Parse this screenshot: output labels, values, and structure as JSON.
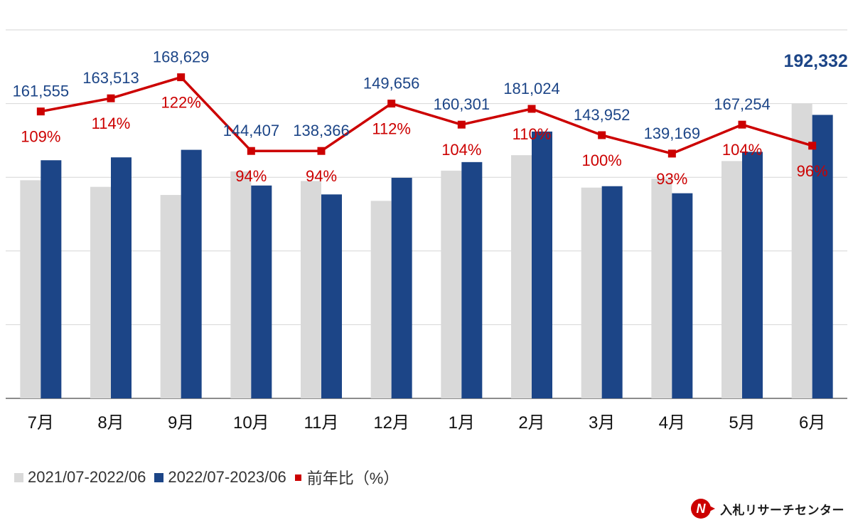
{
  "chart_data": {
    "type": "bar",
    "categories": [
      "7月",
      "8月",
      "9月",
      "10月",
      "11月",
      "12月",
      "1月",
      "2月",
      "3月",
      "4月",
      "5月",
      "6月"
    ],
    "series": [
      {
        "name": "2021/07-2022/06",
        "color": "#d9d9d9",
        "values": [
          148000,
          143500,
          138000,
          154000,
          147500,
          134000,
          154500,
          165000,
          143000,
          149000,
          161000,
          200000
        ]
      },
      {
        "name": "2022/07-2023/06",
        "color": "#1c4587",
        "values": [
          161555,
          163513,
          168629,
          144407,
          138366,
          149656,
          160301,
          181024,
          143952,
          139169,
          167254,
          192332
        ]
      },
      {
        "name": "前年比（%）",
        "color": "#cc0000",
        "axis": "secondary",
        "values": [
          109,
          114,
          122,
          94,
          94,
          112,
          104,
          110,
          100,
          93,
          104,
          96
        ]
      }
    ],
    "value_labels": [
      "161,555",
      "163,513",
      "168,629",
      "144,407",
      "138,366",
      "149,656",
      "160,301",
      "181,024",
      "143,952",
      "139,169",
      "167,254",
      "192,332"
    ],
    "ratio_labels": [
      "109%",
      "114%",
      "122%",
      "94%",
      "94%",
      "112%",
      "104%",
      "110%",
      "100%",
      "93%",
      "104%",
      "96%"
    ],
    "ylim": [
      0,
      250000
    ],
    "y2lim": [
      0,
      140
    ],
    "grid": true,
    "legend_position": "bottom-left"
  },
  "legend": {
    "items": [
      {
        "label": "2021/07-2022/06",
        "color": "#d9d9d9"
      },
      {
        "label": "2022/07-2023/06",
        "color": "#1c4587"
      },
      {
        "label": "前年比（%）",
        "color": "#cc0000"
      }
    ]
  },
  "brand": {
    "name": "入札リサーチセンター",
    "logo_letter": "N"
  }
}
